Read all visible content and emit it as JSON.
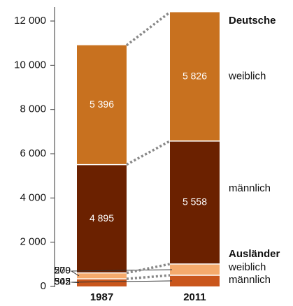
{
  "chart_data": {
    "type": "stacked-bar",
    "categories": [
      "1987",
      "2011"
    ],
    "ylim": [
      0,
      12400
    ],
    "yticks": [
      0,
      {
        "value": 2000,
        "label": "2 000"
      },
      {
        "value": 4000,
        "label": "4 000"
      },
      {
        "value": 6000,
        "label": "6 000"
      },
      {
        "value": 8000,
        "label": "8 000"
      },
      {
        "value": 10000,
        "label": "10 000"
      },
      {
        "value": 12000,
        "label": "12 000"
      }
    ],
    "groups": [
      {
        "name": "Ausländer",
        "series": [
          {
            "name": "männlich",
            "color": "#c9561c",
            "values": [
              342,
              505
            ],
            "value_labels": [
              "342",
              "505"
            ]
          },
          {
            "name": "weiblich",
            "color": "#f5aa6c",
            "values": [
              270,
              509
            ],
            "value_labels": [
              "270",
              "509"
            ]
          }
        ]
      },
      {
        "name": "Deutsche",
        "series": [
          {
            "name": "männlich",
            "color": "#6b2100",
            "values": [
              4895,
              5558
            ],
            "value_labels": [
              "4 895",
              "5 558"
            ]
          },
          {
            "name": "weiblich",
            "color": "#c8711f",
            "values": [
              5396,
              5826
            ],
            "value_labels": [
              "5 396",
              "5 826"
            ]
          }
        ]
      }
    ]
  }
}
